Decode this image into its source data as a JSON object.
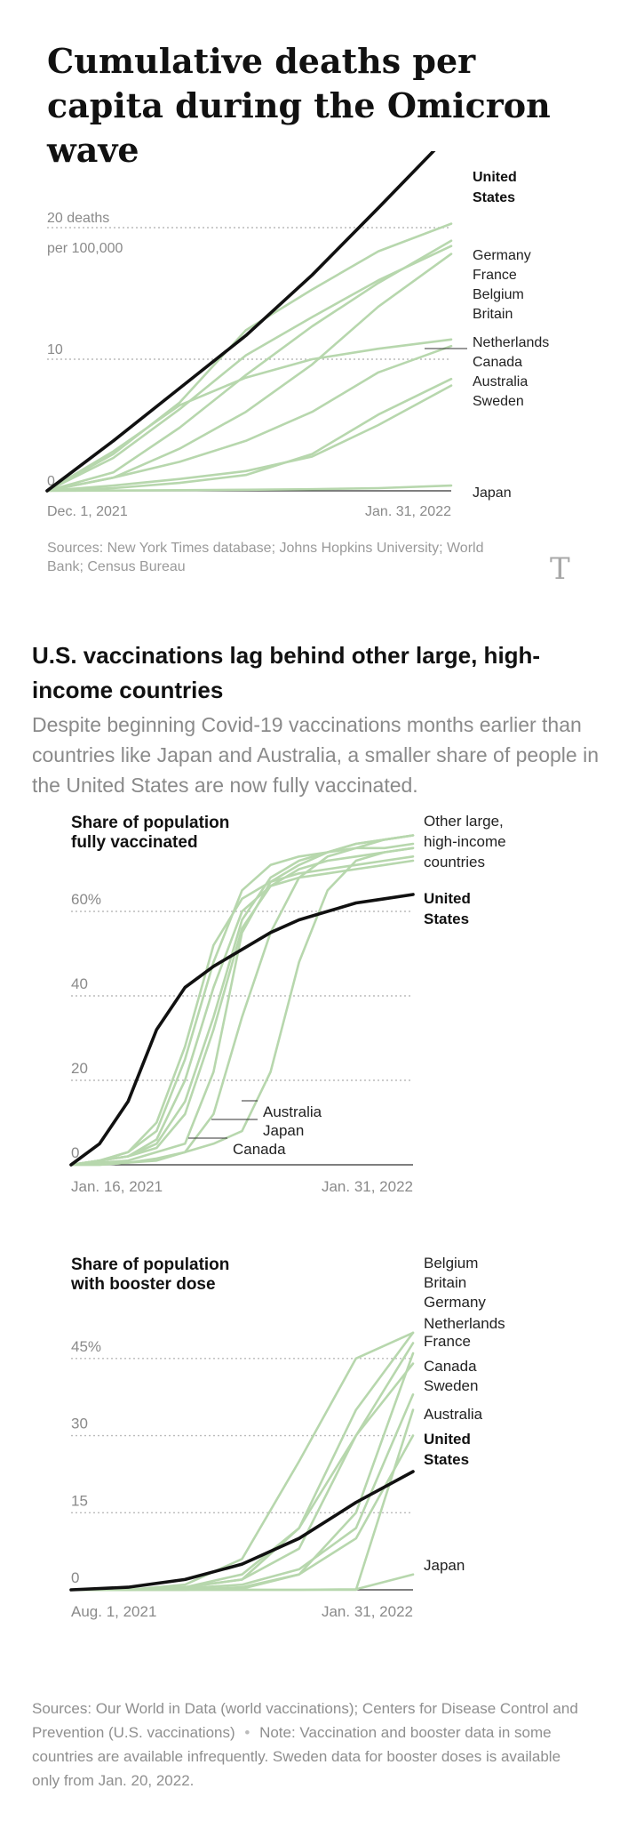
{
  "title": "Cumulative deaths per capita during the Omicron wave",
  "sources_top": "Sources: New York Times database; Johns Hopkins University; World Bank; Census Bureau",
  "logo": "T",
  "section": {
    "title": "U.S. vaccinations lag behind other large, high-income countries",
    "subtitle": "Despite beginning Covid-19 vaccinations months earlier than countries like Japan and Australia, a smaller share of people in the United States are now fully vaccinated."
  },
  "sources_bottom": {
    "sources": "Sources: Our World in Data (world vaccinations); Centers for Disease Control and Prevention (U.S. vaccinations)",
    "dot": "•",
    "note": "Note: Vaccination and booster data in some countries are available infrequently. Sweden data for booster doses is available only from Jan. 20, 2022."
  },
  "colors": {
    "us": "#111111",
    "other": "#b7d7ad",
    "grid": "#bbbbbb",
    "axis": "#333333",
    "label": "#8a8a8a"
  },
  "chart_data": [
    {
      "type": "line",
      "title": "Cumulative deaths per capita during the Omicron wave",
      "x_start": "Dec. 1, 2021",
      "x_end": "Jan. 31, 2022",
      "x": [
        0,
        10,
        20,
        30,
        40,
        50,
        61
      ],
      "ylim": [
        0,
        25
      ],
      "y_ticks": [
        {
          "value": 0,
          "label": "0"
        },
        {
          "value": 10,
          "label": "10"
        },
        {
          "value": 20,
          "label": "20 deaths"
        }
      ],
      "y_unit_label": "per 100,000",
      "series": [
        {
          "name": "United States",
          "label_lines": [
            "United",
            "States"
          ],
          "highlight": true,
          "values": [
            0,
            3.8,
            7.8,
            11.8,
            16.4,
            21.5,
            27.2
          ]
        },
        {
          "name": "Germany",
          "label_lines": [
            "Germany"
          ],
          "values": [
            0,
            2.8,
            6.7,
            12.2,
            15.3,
            18.2,
            20.3
          ]
        },
        {
          "name": "France",
          "label_lines": [
            "France"
          ],
          "values": [
            0,
            1.4,
            4.8,
            8.8,
            12.5,
            15.8,
            19.0
          ]
        },
        {
          "name": "Belgium",
          "label_lines": [
            "Belgium"
          ],
          "values": [
            0,
            2.5,
            6.2,
            10.3,
            13.2,
            16.0,
            18.6
          ]
        },
        {
          "name": "Britain",
          "label_lines": [
            "Britain"
          ],
          "values": [
            0,
            1.0,
            3.2,
            6.0,
            9.6,
            14.0,
            18.0
          ]
        },
        {
          "name": "Netherlands",
          "label_lines": [
            "Netherlands"
          ],
          "values": [
            0,
            3.0,
            6.5,
            8.6,
            10.0,
            10.8,
            11.5
          ]
        },
        {
          "name": "Canada",
          "label_lines": [
            "Canada"
          ],
          "values": [
            0,
            1.0,
            2.2,
            3.8,
            6.0,
            9.0,
            11.0
          ]
        },
        {
          "name": "Australia",
          "label_lines": [
            "Australia"
          ],
          "values": [
            0,
            0.2,
            0.6,
            1.2,
            2.8,
            5.8,
            8.5
          ]
        },
        {
          "name": "Sweden",
          "label_lines": [
            "Sweden"
          ],
          "values": [
            0,
            0.4,
            0.9,
            1.5,
            2.6,
            5.0,
            8.0
          ]
        },
        {
          "name": "Japan",
          "label_lines": [
            "Japan"
          ],
          "values": [
            0,
            0.02,
            0.05,
            0.08,
            0.12,
            0.2,
            0.4
          ]
        }
      ]
    },
    {
      "type": "line",
      "title": "Share of population fully vaccinated",
      "title_lines": [
        "Share of population",
        "fully vaccinated"
      ],
      "x_start": "Jan. 16, 2021",
      "x_end": "Jan. 31, 2022",
      "x": [
        0,
        1,
        2,
        3,
        4,
        5,
        6,
        7,
        8,
        9,
        10,
        11,
        12
      ],
      "ylim": [
        0,
        80
      ],
      "y_ticks": [
        {
          "value": 0,
          "label": "0"
        },
        {
          "value": 20,
          "label": "20"
        },
        {
          "value": 40,
          "label": "40"
        },
        {
          "value": 60,
          "label": "60%"
        }
      ],
      "series": [
        {
          "name": "United States",
          "label_lines": [
            "United",
            "States"
          ],
          "highlight": true,
          "values": [
            0,
            5,
            15,
            32,
            42,
            47,
            51,
            55,
            58,
            60,
            62,
            63,
            64
          ]
        },
        {
          "name": "Other large, high-income countries",
          "label_lines": [
            "Other large,",
            "high-income",
            "countries"
          ],
          "values": [
            0,
            1,
            3,
            8,
            25,
            48,
            65,
            71,
            73,
            74,
            75,
            75,
            76
          ]
        },
        {
          "name": "Other large, high-income countries",
          "values": [
            0,
            1,
            2,
            5,
            15,
            35,
            58,
            68,
            72,
            74,
            76,
            77,
            78
          ]
        },
        {
          "name": "Other large, high-income countries",
          "values": [
            0,
            1,
            2,
            6,
            20,
            42,
            60,
            66,
            68,
            69,
            70,
            71,
            72
          ]
        },
        {
          "name": "Other large, high-income countries",
          "values": [
            0,
            1,
            3,
            10,
            28,
            52,
            63,
            67,
            69,
            70,
            71,
            72,
            73
          ]
        },
        {
          "name": "Other large, high-income countries",
          "values": [
            0,
            1,
            2,
            4,
            12,
            32,
            56,
            66,
            70,
            72,
            73,
            74,
            75
          ]
        },
        {
          "name": "Australia",
          "label_lines": [
            "Australia"
          ],
          "values": [
            0,
            0,
            0.5,
            1.5,
            3,
            5,
            8,
            22,
            48,
            65,
            72,
            74,
            75
          ]
        },
        {
          "name": "Japan",
          "label_lines": [
            "Japan"
          ],
          "values": [
            0,
            0,
            0.5,
            1,
            3,
            12,
            35,
            55,
            68,
            73,
            75,
            77,
            78
          ]
        },
        {
          "name": "Canada",
          "label_lines": [
            "Canada"
          ],
          "values": [
            0,
            0.5,
            1,
            3,
            5,
            22,
            55,
            67,
            71,
            74,
            76,
            77,
            78
          ]
        }
      ]
    },
    {
      "type": "line",
      "title": "Share of population with booster dose",
      "title_lines": [
        "Share of population",
        "with booster dose"
      ],
      "x_start": "Aug. 1, 2021",
      "x_end": "Jan. 31, 2022",
      "x": [
        0,
        1,
        2,
        3,
        4,
        5,
        6
      ],
      "ylim": [
        0,
        55
      ],
      "y_ticks": [
        {
          "value": 0,
          "label": "0"
        },
        {
          "value": 15,
          "label": "15"
        },
        {
          "value": 30,
          "label": "30"
        },
        {
          "value": 45,
          "label": "45%"
        }
      ],
      "series": [
        {
          "name": "United States",
          "label_lines": [
            "United",
            "States"
          ],
          "highlight": true,
          "values": [
            0,
            0.5,
            2,
            5,
            10,
            17,
            23
          ]
        },
        {
          "name": "Belgium",
          "label_lines": [
            "Belgium"
          ],
          "values": [
            0,
            0,
            0.5,
            2,
            12,
            35,
            50
          ]
        },
        {
          "name": "Britain",
          "label_lines": [
            "Britain"
          ],
          "values": [
            0,
            0,
            1,
            6,
            25,
            45,
            50
          ]
        },
        {
          "name": "Germany",
          "label_lines": [
            "Germany"
          ],
          "values": [
            0,
            0,
            0.5,
            2,
            8,
            30,
            48
          ]
        },
        {
          "name": "Netherlands",
          "label_lines": [
            "Netherlands"
          ],
          "values": [
            0,
            0,
            0,
            0.5,
            3,
            15,
            46
          ]
        },
        {
          "name": "France",
          "label_lines": [
            "France"
          ],
          "values": [
            0,
            0,
            0.5,
            3,
            12,
            30,
            44
          ]
        },
        {
          "name": "Canada",
          "label_lines": [
            "Canada"
          ],
          "values": [
            0,
            0,
            0.3,
            1,
            4,
            12,
            38
          ]
        },
        {
          "name": "Sweden",
          "label_lines": [
            "Sweden"
          ],
          "values": [
            0,
            0,
            0,
            0,
            0,
            0,
            35
          ]
        },
        {
          "name": "Australia",
          "label_lines": [
            "Australia"
          ],
          "values": [
            0,
            0,
            0,
            0.2,
            3,
            10,
            30
          ]
        },
        {
          "name": "Japan",
          "label_lines": [
            "Japan"
          ],
          "values": [
            0,
            0,
            0,
            0,
            0,
            0.1,
            3
          ]
        }
      ]
    }
  ]
}
